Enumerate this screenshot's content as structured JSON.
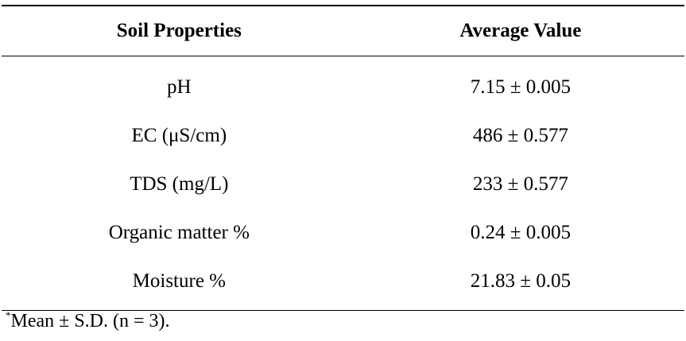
{
  "table": {
    "headers": [
      "Soil Properties",
      "Average Value"
    ],
    "rows": [
      [
        "pH",
        "7.15 ± 0.005"
      ],
      [
        "EC (μS/cm)",
        "486 ± 0.577"
      ],
      [
        "TDS (mg/L)",
        "233 ± 0.577"
      ],
      [
        "Organic matter %",
        "0.24 ± 0.005"
      ],
      [
        "Moisture %",
        "21.83 ± 0.05"
      ]
    ]
  },
  "footnote": {
    "marker": "*",
    "text": "Mean ± S.D. (n = 3)."
  }
}
